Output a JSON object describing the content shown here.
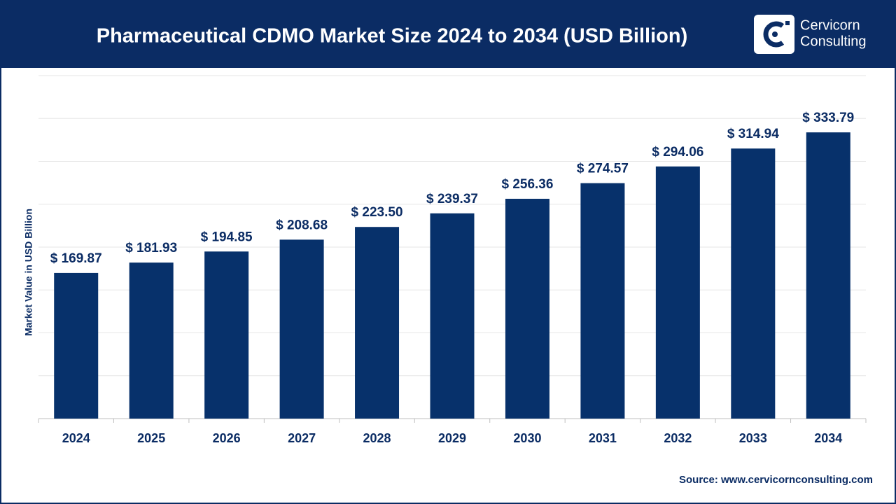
{
  "chart_data": {
    "type": "bar",
    "title": "Pharmaceutical CDMO Market Size 2024 to 2034 (USD Billion)",
    "y_label": "Market Value in USD Billion",
    "categories": [
      "2024",
      "2025",
      "2026",
      "2027",
      "2028",
      "2029",
      "2030",
      "2031",
      "2032",
      "2033",
      "2034"
    ],
    "values": [
      169.87,
      181.93,
      194.85,
      208.68,
      223.5,
      239.37,
      256.36,
      274.57,
      294.06,
      314.94,
      333.79
    ],
    "value_labels": [
      "$ 169.87",
      "$ 181.93",
      "$ 194.85",
      "$ 208.68",
      "$ 223.50",
      "$ 239.37",
      "$ 256.36",
      "$ 274.57",
      "$ 294.06",
      "$ 314.94",
      "$ 333.79"
    ],
    "color": "#07316b",
    "ylim": [
      0,
      400
    ],
    "yticks": [
      0,
      50,
      100,
      150,
      200,
      250,
      300,
      350,
      400
    ],
    "grid": true,
    "source": "Source: www.cervicornconsulting.com"
  },
  "logo": {
    "line1": "Cervicorn",
    "line2": "Consulting"
  }
}
